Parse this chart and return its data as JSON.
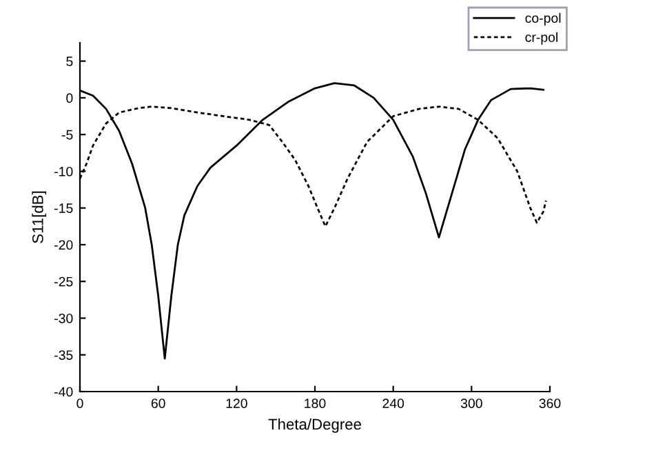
{
  "chart_data": {
    "type": "line",
    "xlabel": "Theta/Degree",
    "ylabel": "S11[dB]",
    "xlim": [
      0,
      360
    ],
    "ylim": [
      -40,
      7.5
    ],
    "xticks": [
      0,
      60,
      120,
      180,
      240,
      300,
      360
    ],
    "yticks": [
      -40,
      -35,
      -30,
      -25,
      -20,
      -15,
      -10,
      -5,
      0,
      5
    ],
    "legend": "top right",
    "grid": false,
    "marker": "none",
    "series": [
      {
        "name": "co-pol",
        "color": "#000000",
        "line_style": "solid",
        "x": [
          0,
          10,
          20,
          30,
          40,
          50,
          55,
          60,
          65,
          70,
          75,
          80,
          90,
          100,
          120,
          140,
          160,
          180,
          195,
          210,
          225,
          240,
          255,
          265,
          275,
          285,
          295,
          305,
          315,
          330,
          345,
          355
        ],
        "values": [
          1,
          0.3,
          -1.5,
          -4.5,
          -9,
          -15,
          -20,
          -27,
          -35.5,
          -27,
          -20,
          -16,
          -12,
          -9.5,
          -6.5,
          -3,
          -0.5,
          1.3,
          2,
          1.7,
          0,
          -3,
          -8,
          -13,
          -19,
          -13,
          -7,
          -3,
          -0.3,
          1.2,
          1.3,
          1.1
        ]
      },
      {
        "name": "cr-pol",
        "color": "#000000",
        "line_style": "dashed",
        "x": [
          0,
          5,
          10,
          20,
          30,
          45,
          55,
          70,
          90,
          110,
          130,
          145,
          155,
          165,
          175,
          182,
          188,
          195,
          205,
          220,
          240,
          260,
          275,
          290,
          305,
          320,
          335,
          345,
          350,
          355,
          357
        ],
        "values": [
          -11,
          -9,
          -6.5,
          -3.5,
          -2,
          -1.4,
          -1.2,
          -1.4,
          -2,
          -2.5,
          -3,
          -3.7,
          -6,
          -8.5,
          -12,
          -15,
          -17.5,
          -15,
          -11,
          -6,
          -2.5,
          -1.5,
          -1.2,
          -1.5,
          -3,
          -5.5,
          -10,
          -15,
          -17,
          -15.5,
          -14
        ]
      }
    ]
  }
}
